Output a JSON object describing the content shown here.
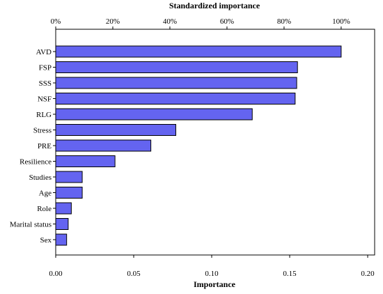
{
  "chart_data": {
    "type": "bar",
    "orientation": "horizontal",
    "categories": [
      "AVD",
      "FSP",
      "SSS",
      "NSF",
      "RLG",
      "Stress",
      "PRE",
      "Resilience",
      "Studies",
      "Age",
      "Role",
      "Marital status",
      "Sex"
    ],
    "values": [
      0.183,
      0.155,
      0.1545,
      0.1535,
      0.126,
      0.077,
      0.061,
      0.038,
      0.017,
      0.017,
      0.01,
      0.008,
      0.007
    ],
    "xlabel": "Importance",
    "xlim": [
      0,
      0.2
    ],
    "x_ticks": [
      "0.00",
      "0.05",
      "0.10",
      "0.15",
      "0.20"
    ],
    "secondary_axis_label": "Standardized importance",
    "secondary_ticks": [
      "0%",
      "20%",
      "40%",
      "60%",
      "80%",
      "100%"
    ],
    "bar_color": "#6464f0",
    "bar_edge_color": "#000000",
    "grid": false,
    "legend": "none"
  }
}
